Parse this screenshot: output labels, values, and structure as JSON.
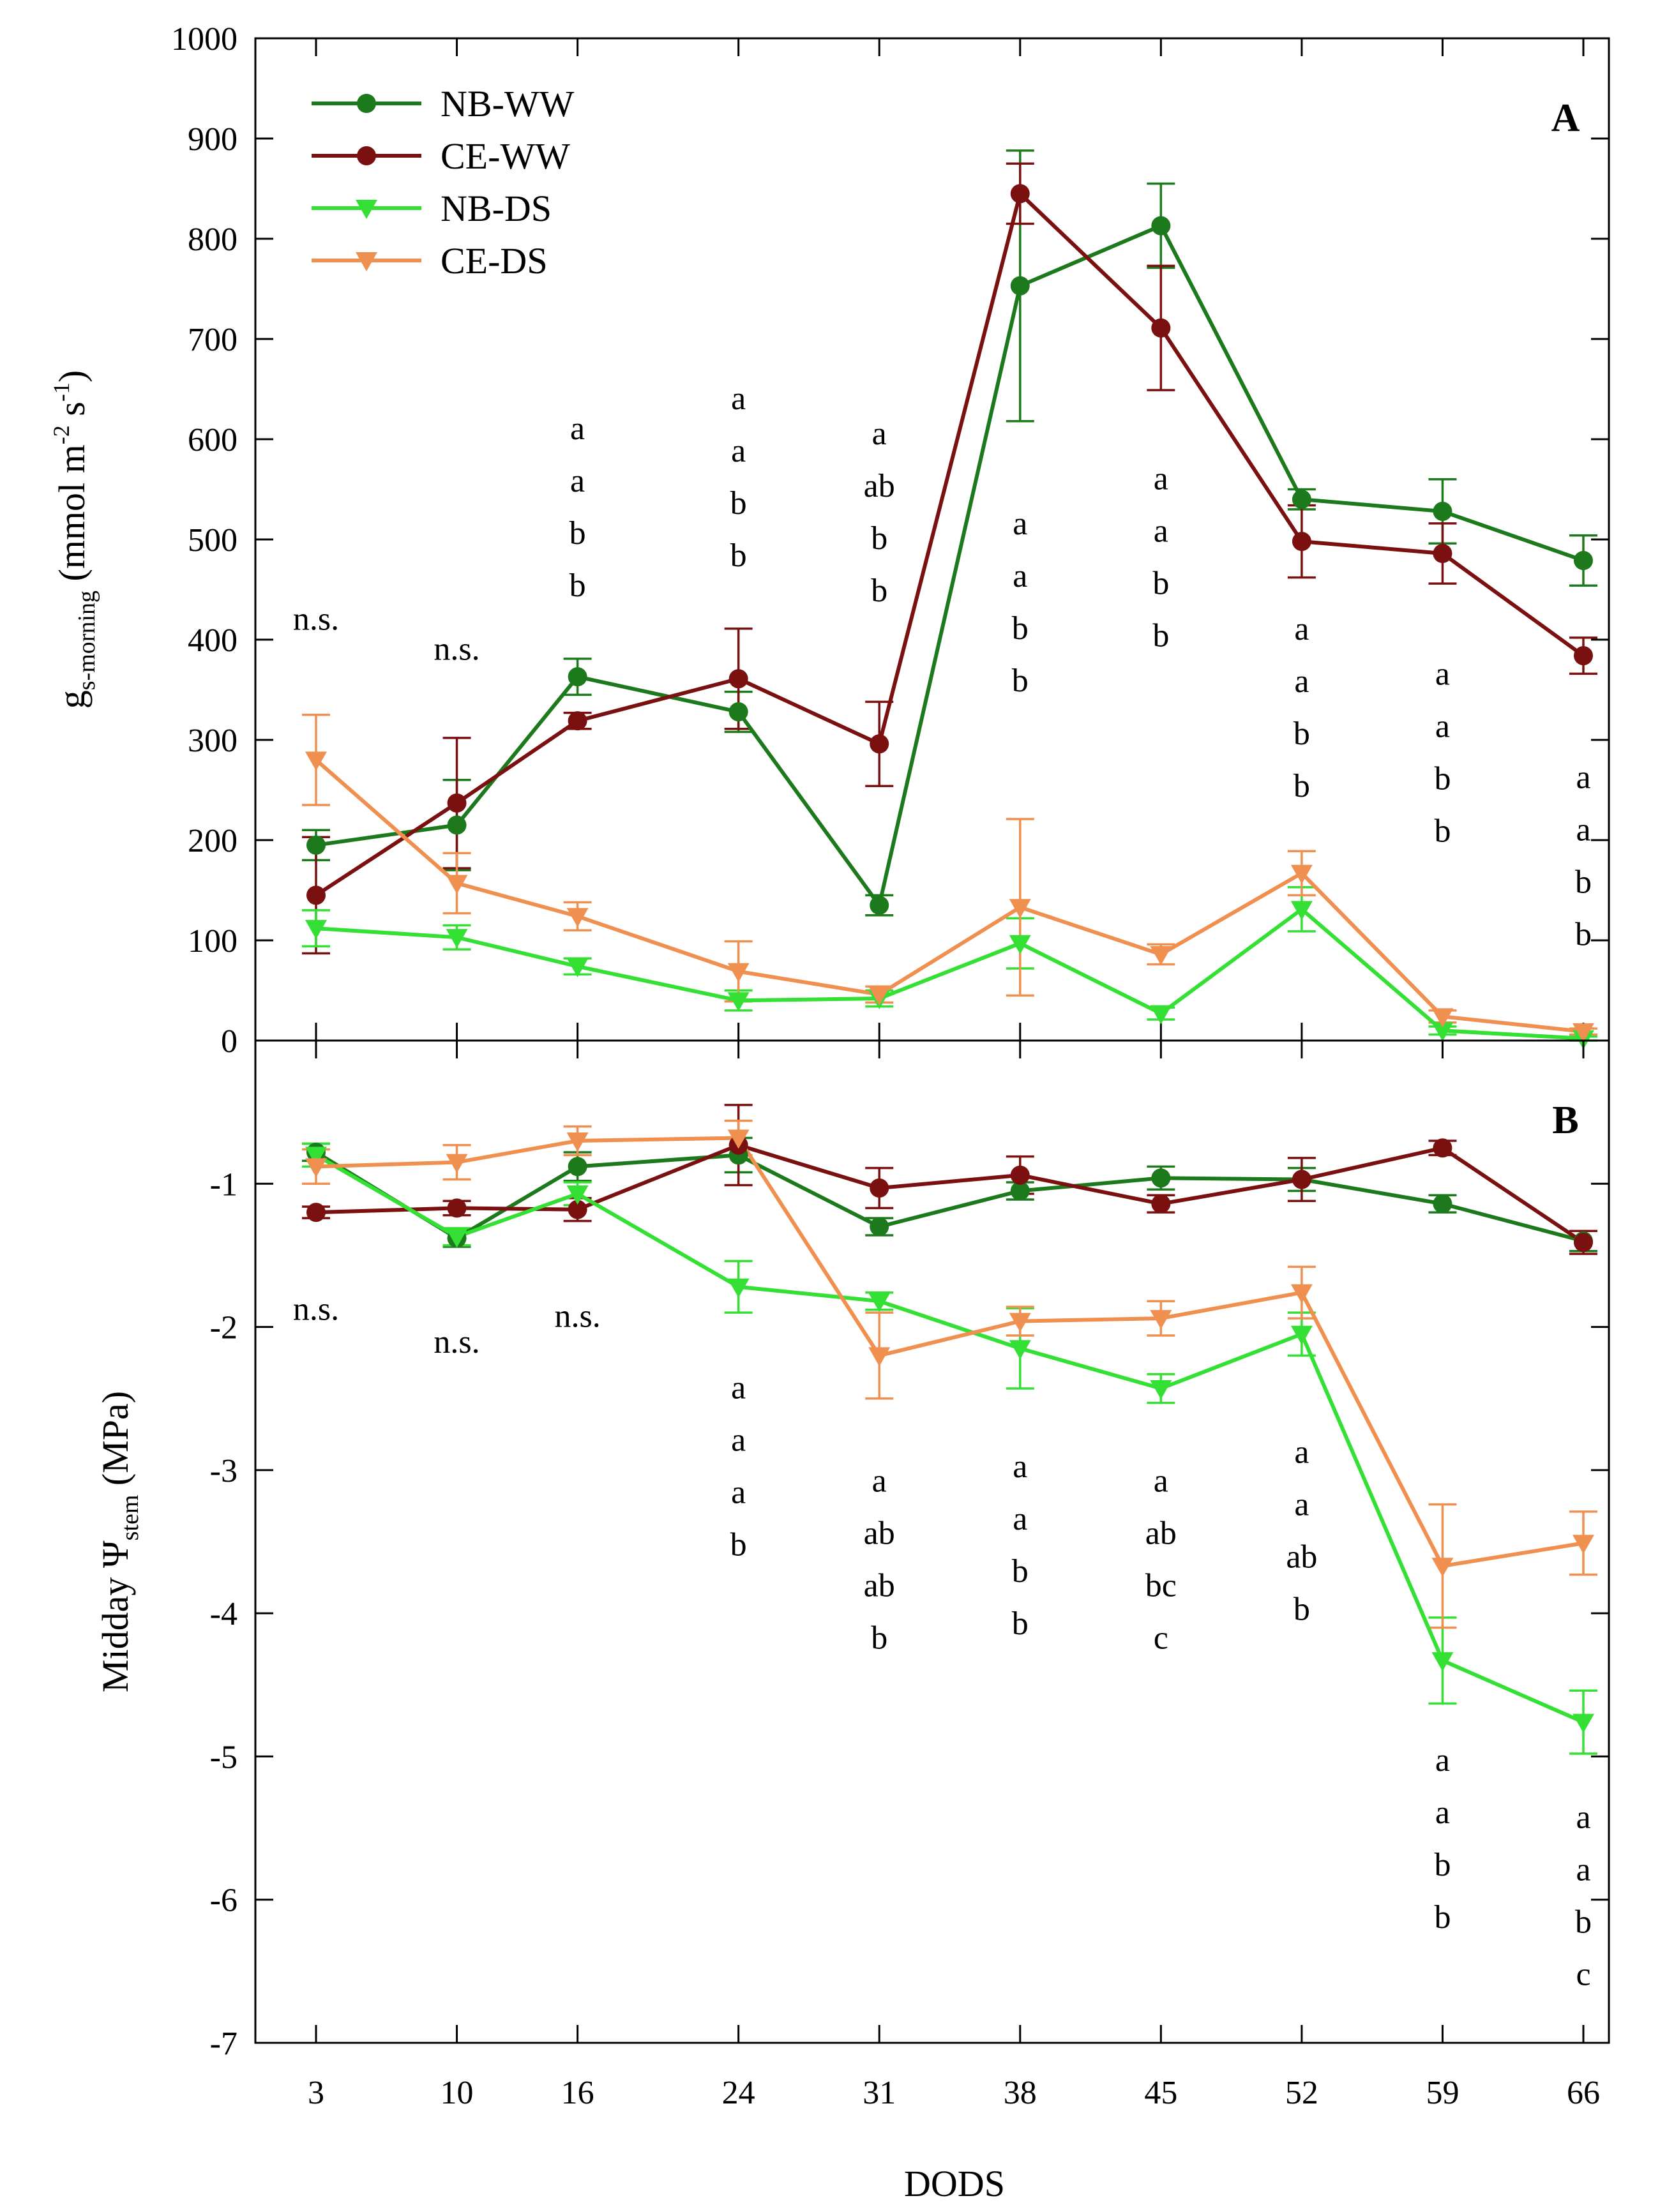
{
  "chart_data": [
    {
      "type": "line",
      "panel": "A",
      "ylabel_main": "g",
      "ylabel_sub": "s-morning",
      "ylabel_rest": " (mmol m",
      "ylabel_exp1": "-2",
      "ylabel_mid": " s",
      "ylabel_exp2": "-1",
      "ylabel_close": ")",
      "ylim": [
        0,
        1000
      ],
      "yticks": [
        "0",
        "100",
        "200",
        "300",
        "400",
        "500",
        "600",
        "700",
        "800",
        "900",
        "1000"
      ],
      "x": [
        3,
        10,
        16,
        24,
        31,
        38,
        45,
        52,
        59,
        66
      ],
      "legend_placement": "top-left",
      "series": [
        {
          "name": "NB-WW",
          "color": "#1c7a1c",
          "marker": "circle",
          "values": [
            195,
            215,
            363,
            328,
            135,
            753,
            813,
            540,
            528,
            479
          ],
          "errors": [
            15,
            45,
            18,
            20,
            10,
            135,
            42,
            10,
            32,
            25
          ]
        },
        {
          "name": "CE-WW",
          "color": "#7a1010",
          "marker": "circle",
          "values": [
            145,
            237,
            319,
            361,
            296,
            845,
            711,
            498,
            486,
            384
          ],
          "errors": [
            58,
            65,
            8,
            50,
            42,
            30,
            62,
            36,
            30,
            18
          ]
        },
        {
          "name": "NB-DS",
          "color": "#33e033",
          "marker": "triangle-down",
          "values": [
            112,
            103,
            74,
            40,
            42,
            97,
            27,
            131,
            10,
            2
          ],
          "errors": [
            18,
            12,
            8,
            10,
            8,
            25,
            6,
            22,
            4,
            2
          ]
        },
        {
          "name": "CE-DS",
          "color": "#f09050",
          "marker": "triangle-down",
          "values": [
            280,
            157,
            124,
            69,
            46,
            133,
            86,
            167,
            24,
            9
          ],
          "errors": [
            45,
            30,
            14,
            30,
            8,
            88,
            10,
            22,
            6,
            3
          ]
        }
      ],
      "annotations": [
        {
          "x": 3,
          "y": 410,
          "lines": [
            "n.s."
          ]
        },
        {
          "x": 10,
          "y": 380,
          "lines": [
            "n.s."
          ]
        },
        {
          "x": 16,
          "y": 600,
          "lines": [
            "a",
            "a",
            "b",
            "b"
          ]
        },
        {
          "x": 24,
          "y": 630,
          "lines": [
            "a",
            "a",
            "b",
            "b"
          ]
        },
        {
          "x": 31,
          "y": 595,
          "lines": [
            "a",
            "ab",
            "b",
            "b"
          ]
        },
        {
          "x": 38,
          "y": 505,
          "lines": [
            "a",
            "a",
            "b",
            "b"
          ]
        },
        {
          "x": 45,
          "y": 550,
          "lines": [
            "a",
            "a",
            "b",
            "b"
          ]
        },
        {
          "x": 52,
          "y": 400,
          "lines": [
            "a",
            "a",
            "b",
            "b"
          ]
        },
        {
          "x": 59,
          "y": 355,
          "lines": [
            "a",
            "a",
            "b",
            "b"
          ]
        },
        {
          "x": 66,
          "y": 252,
          "lines": [
            "a",
            "a",
            "b",
            "b"
          ]
        }
      ]
    },
    {
      "type": "line",
      "panel": "B",
      "ylabel_main": "Midday Ψ",
      "ylabel_sub": "stem",
      "ylabel_rest": " (MPa)",
      "xlabel": "DODS",
      "ylim": [
        -7,
        0
      ],
      "yticks": [
        "-1",
        "-2",
        "-3",
        "-4",
        "-5",
        "-6",
        "-7"
      ],
      "x": [
        3,
        10,
        16,
        24,
        31,
        38,
        45,
        52,
        59,
        66
      ],
      "xticks": [
        "3",
        "10",
        "16",
        "24",
        "31",
        "38",
        "45",
        "52",
        "59",
        "66"
      ],
      "series": [
        {
          "name": "NB-WW",
          "color": "#1c7a1c",
          "marker": "circle",
          "values": [
            -0.78,
            -1.38,
            -0.88,
            -0.8,
            -1.3,
            -1.05,
            -0.96,
            -0.97,
            -1.14,
            -1.4
          ],
          "errors": [
            0.06,
            0.06,
            0.1,
            0.12,
            0.06,
            0.06,
            0.08,
            0.08,
            0.06,
            0.07
          ]
        },
        {
          "name": "CE-WW",
          "color": "#7a1010",
          "marker": "circle",
          "values": [
            -1.2,
            -1.17,
            -1.18,
            -0.73,
            -1.03,
            -0.94,
            -1.14,
            -0.97,
            -0.75,
            -1.41
          ],
          "errors": [
            0.04,
            0.05,
            0.08,
            0.28,
            0.14,
            0.13,
            0.06,
            0.15,
            0.05,
            0.08
          ]
        },
        {
          "name": "NB-DS",
          "color": "#33e033",
          "marker": "triangle-down",
          "values": [
            -0.8,
            -1.37,
            -1.07,
            -1.72,
            -1.82,
            -2.15,
            -2.43,
            -2.05,
            -4.33,
            -4.76
          ],
          "errors": [
            0.08,
            0.06,
            0.08,
            0.18,
            0.06,
            0.28,
            0.1,
            0.15,
            0.3,
            0.22
          ]
        },
        {
          "name": "CE-DS",
          "color": "#f09050",
          "marker": "triangle-down",
          "values": [
            -0.88,
            -0.85,
            -0.7,
            -0.68,
            -2.2,
            -1.96,
            -1.94,
            -1.76,
            -3.67,
            -3.51
          ],
          "errors": [
            0.12,
            0.12,
            0.1,
            0.12,
            0.3,
            0.1,
            0.12,
            0.18,
            0.43,
            0.22
          ]
        }
      ],
      "annotations": [
        {
          "x": 3,
          "y": -1.95,
          "lines": [
            "n.s."
          ]
        },
        {
          "x": 10,
          "y": -2.18,
          "lines": [
            "n.s."
          ]
        },
        {
          "x": 16,
          "y": -2.0,
          "lines": [
            "n.s."
          ]
        },
        {
          "x": 24,
          "y": -2.5,
          "lines": [
            "a",
            "a",
            "a",
            "b"
          ]
        },
        {
          "x": 31,
          "y": -3.15,
          "lines": [
            "a",
            "ab",
            "ab",
            "b"
          ]
        },
        {
          "x": 38,
          "y": -3.05,
          "lines": [
            "a",
            "a",
            "b",
            "b"
          ]
        },
        {
          "x": 45,
          "y": -3.15,
          "lines": [
            "a",
            "ab",
            "bc",
            "c"
          ]
        },
        {
          "x": 52,
          "y": -2.95,
          "lines": [
            "a",
            "a",
            "ab",
            "b"
          ]
        },
        {
          "x": 59,
          "y": -5.1,
          "lines": [
            "a",
            "a",
            "b",
            "b"
          ]
        },
        {
          "x": 66,
          "y": -5.5,
          "lines": [
            "a",
            "a",
            "b",
            "c"
          ]
        }
      ]
    }
  ]
}
